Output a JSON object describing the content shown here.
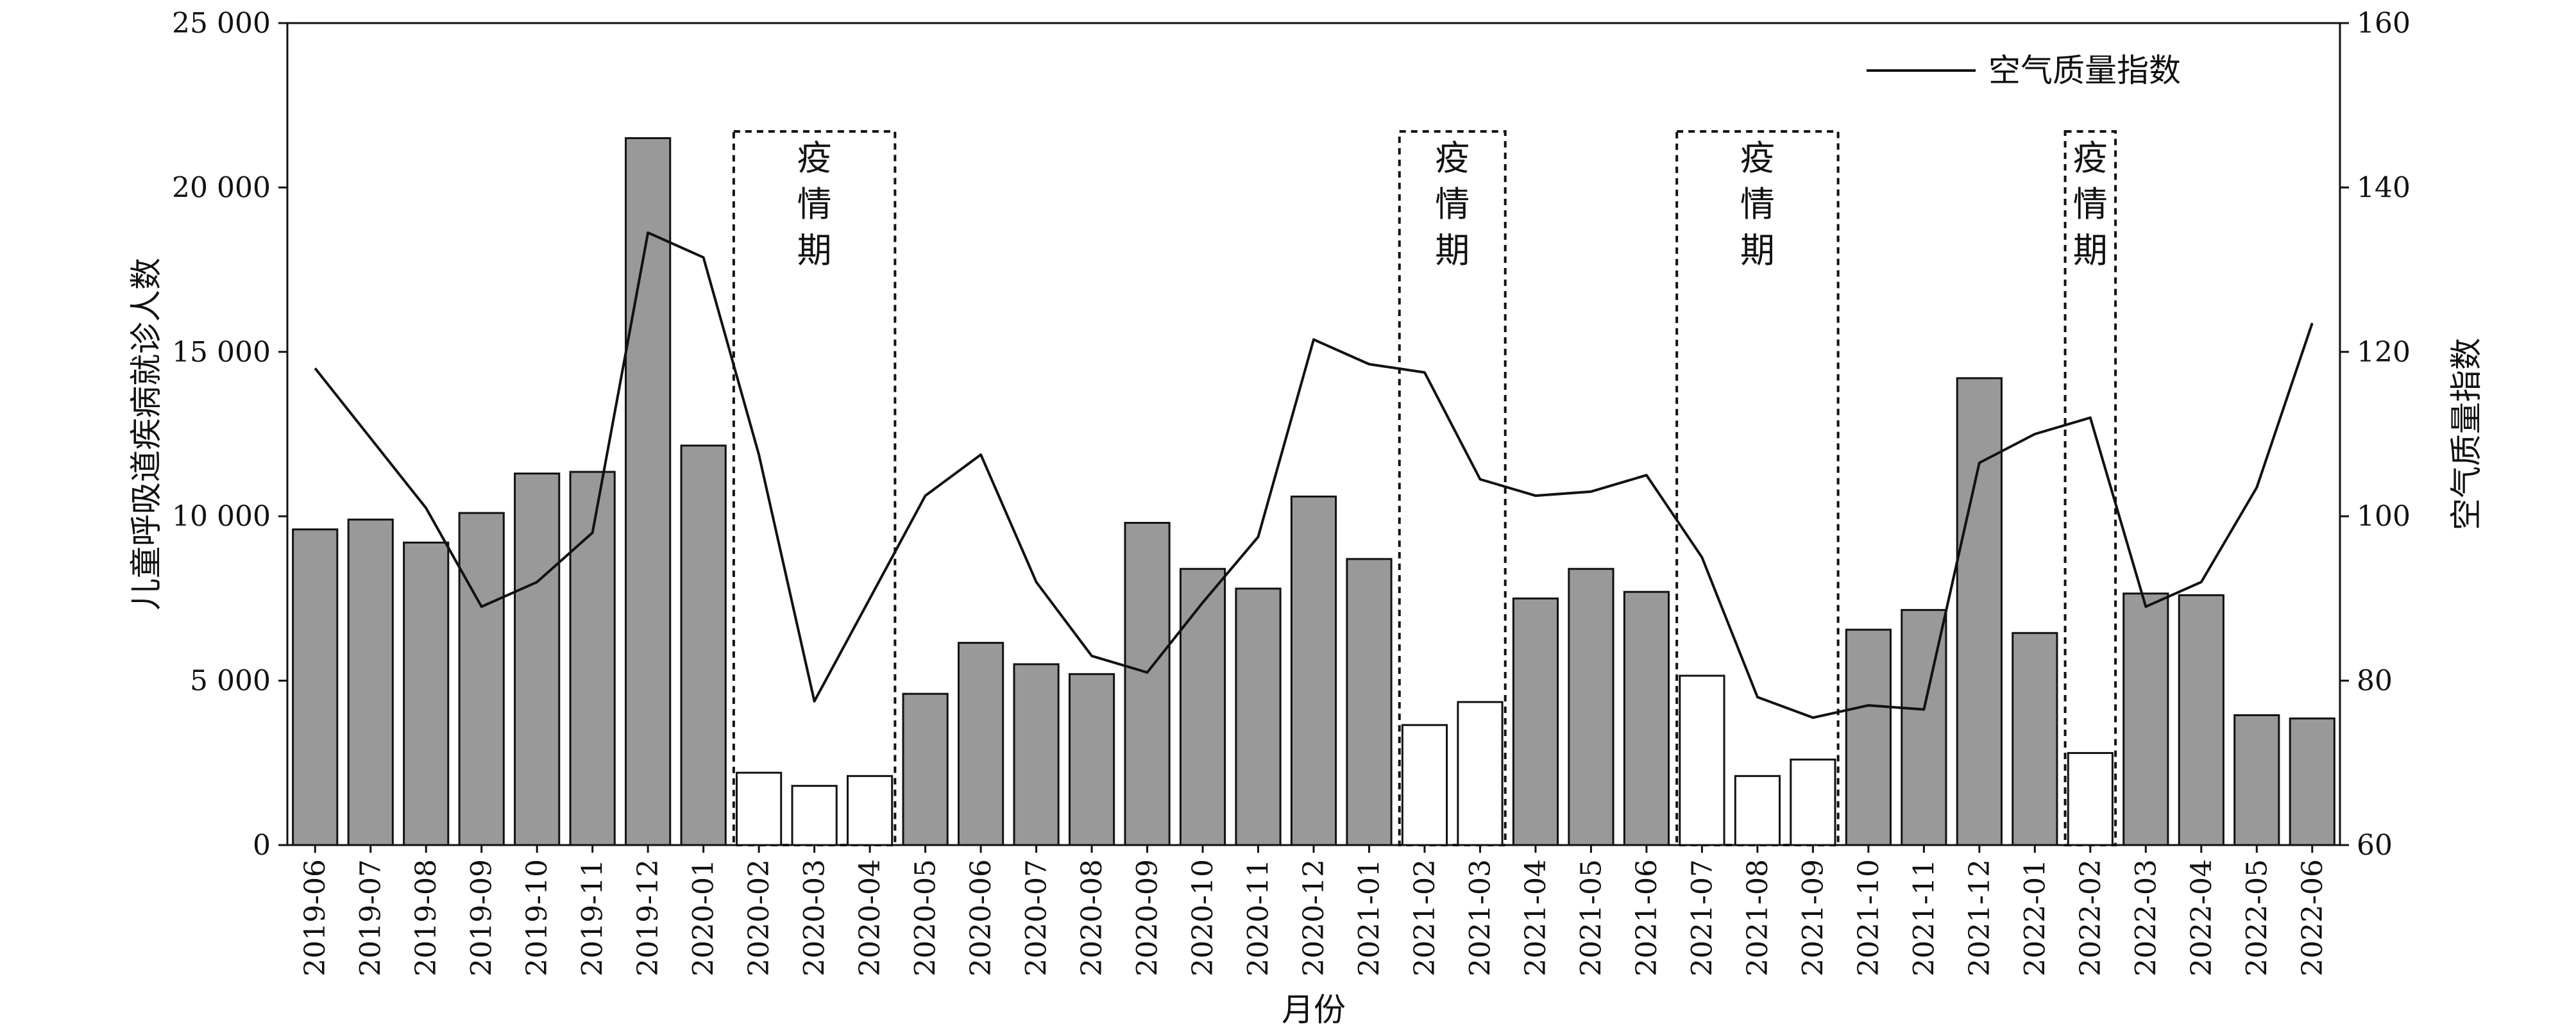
{
  "chart_data": {
    "type": "bar",
    "xlabel": "月份",
    "ylabel": "儿童呼吸道疾病就诊人数",
    "y2label": "空气质量指数",
    "ylim": [
      0,
      25000
    ],
    "y2lim": [
      60,
      160
    ],
    "yticks": [
      "0",
      "5 000",
      "10 000",
      "15 000",
      "20 000",
      "25 000"
    ],
    "yticks_values": [
      0,
      5000,
      10000,
      15000,
      20000,
      25000
    ],
    "y2ticks": [
      "60",
      "80",
      "100",
      "120",
      "140",
      "160"
    ],
    "y2ticks_values": [
      60,
      80,
      100,
      120,
      140,
      160
    ],
    "legend": {
      "position": "top-right",
      "label": "空气质量指数"
    },
    "grid": false,
    "categories": [
      "2019-06",
      "2019-07",
      "2019-08",
      "2019-09",
      "2019-10",
      "2019-11",
      "2019-12",
      "2020-01",
      "2020-02",
      "2020-03",
      "2020-04",
      "2020-05",
      "2020-06",
      "2020-07",
      "2020-08",
      "2020-09",
      "2020-10",
      "2020-11",
      "2020-12",
      "2021-01",
      "2021-02",
      "2021-03",
      "2021-04",
      "2021-05",
      "2021-06",
      "2021-07",
      "2021-08",
      "2021-09",
      "2021-10",
      "2021-11",
      "2021-12",
      "2022-01",
      "2022-02",
      "2022-03",
      "2022-04",
      "2022-05",
      "2022-06"
    ],
    "values": [
      9600,
      9900,
      9200,
      10100,
      11300,
      11350,
      21500,
      12150,
      2200,
      1800,
      2100,
      4600,
      6150,
      5500,
      5200,
      9800,
      8400,
      7800,
      10600,
      8700,
      3650,
      4350,
      7500,
      8400,
      7700,
      5150,
      2100,
      2600,
      6550,
      7150,
      14200,
      6450,
      2800,
      7650,
      7600,
      3950,
      3850
    ],
    "epidemic_months": [
      "2020-02",
      "2020-03",
      "2020-04",
      "2021-02",
      "2021-03",
      "2021-07",
      "2021-08",
      "2021-09",
      "2022-02"
    ],
    "line": {
      "name": "空气质量指数",
      "values": [
        118,
        109.5,
        101,
        89,
        92,
        98,
        134.5,
        131.5,
        107.5,
        77.5,
        90,
        102.5,
        107.5,
        92,
        83,
        81,
        89.5,
        97.5,
        121.5,
        118.5,
        117.5,
        104.5,
        102.5,
        103,
        105,
        95,
        78,
        75.5,
        77,
        76.5,
        106.5,
        110,
        112,
        89,
        92,
        103.5,
        123.5
      ]
    },
    "epidemic_periods": [
      {
        "label": "疫情期",
        "from": "2020-02",
        "to": "2020-04"
      },
      {
        "label": "疫情期",
        "from": "2021-02",
        "to": "2021-03"
      },
      {
        "label": "疫情期",
        "from": "2021-07",
        "to": "2021-09"
      },
      {
        "label": "疫情期",
        "from": "2022-02",
        "to": "2022-02"
      }
    ],
    "colors": {
      "bar_normal": "#999999",
      "bar_epidemic": "#ffffff",
      "stroke": "#111111",
      "line": "#111111"
    }
  }
}
